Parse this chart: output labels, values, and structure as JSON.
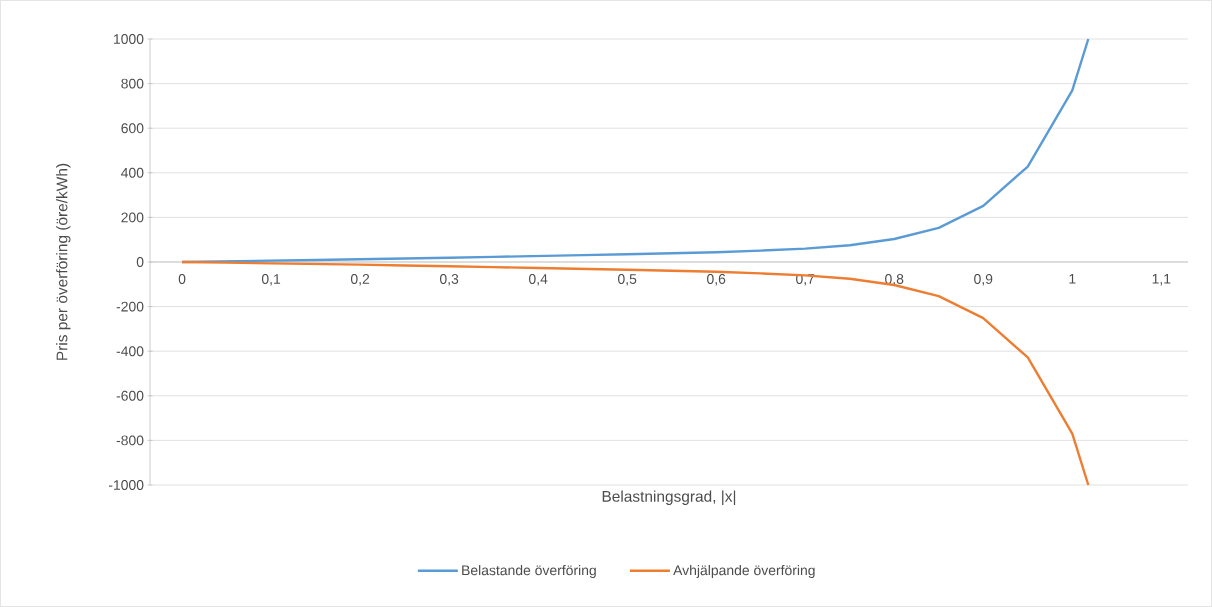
{
  "chart_data": {
    "type": "line",
    "ylabel": "Pris per överföring (öre/kWh)",
    "xlabel": "Belastningsgrad, |x|",
    "series": [
      {
        "name": "Belastande överföring",
        "color": "#5b9bd5",
        "x": [
          0,
          0.05,
          0.1,
          0.15,
          0.2,
          0.25,
          0.3,
          0.35,
          0.4,
          0.45,
          0.5,
          0.55,
          0.6,
          0.65,
          0.7,
          0.75,
          0.8,
          0.85,
          0.9,
          0.95,
          1.0,
          1.018
        ],
        "values": [
          0,
          3,
          6,
          9,
          12,
          16,
          19,
          23,
          27,
          31,
          35,
          39,
          44,
          51,
          60,
          75,
          103,
          153,
          252,
          428,
          770,
          1000
        ]
      },
      {
        "name": "Avhjälpande överföring",
        "color": "#ed7d31",
        "x": [
          0,
          0.05,
          0.1,
          0.15,
          0.2,
          0.25,
          0.3,
          0.35,
          0.4,
          0.45,
          0.5,
          0.55,
          0.6,
          0.65,
          0.7,
          0.75,
          0.8,
          0.85,
          0.9,
          0.95,
          1.0,
          1.018
        ],
        "values": [
          0,
          -3,
          -6,
          -9,
          -12,
          -16,
          -19,
          -23,
          -27,
          -31,
          -35,
          -39,
          -44,
          -51,
          -60,
          -75,
          -103,
          -153,
          -252,
          -428,
          -770,
          -1000
        ]
      }
    ],
    "xlim": [
      -0.036,
      1.13
    ],
    "xticks": [
      0,
      {
        "value": 0.1,
        "label": "0,1"
      },
      {
        "value": 0.2,
        "label": "0,2"
      },
      {
        "value": 0.3,
        "label": "0,3"
      },
      {
        "value": 0.4,
        "label": "0,4"
      },
      {
        "value": 0.5,
        "label": "0,5"
      },
      {
        "value": 0.6,
        "label": "0,6"
      },
      {
        "value": 0.7,
        "label": "0,7"
      },
      {
        "value": 0.8,
        "label": "0,8"
      },
      {
        "value": 0.9,
        "label": "0,9"
      },
      1,
      {
        "value": 1.1,
        "label": "1,1"
      }
    ],
    "ylim": [
      -1000,
      1000
    ],
    "yticks": [
      -1000,
      -800,
      -600,
      -400,
      -200,
      0,
      200,
      400,
      600,
      800,
      1000
    ],
    "grid": "y",
    "legend": "bottom"
  }
}
